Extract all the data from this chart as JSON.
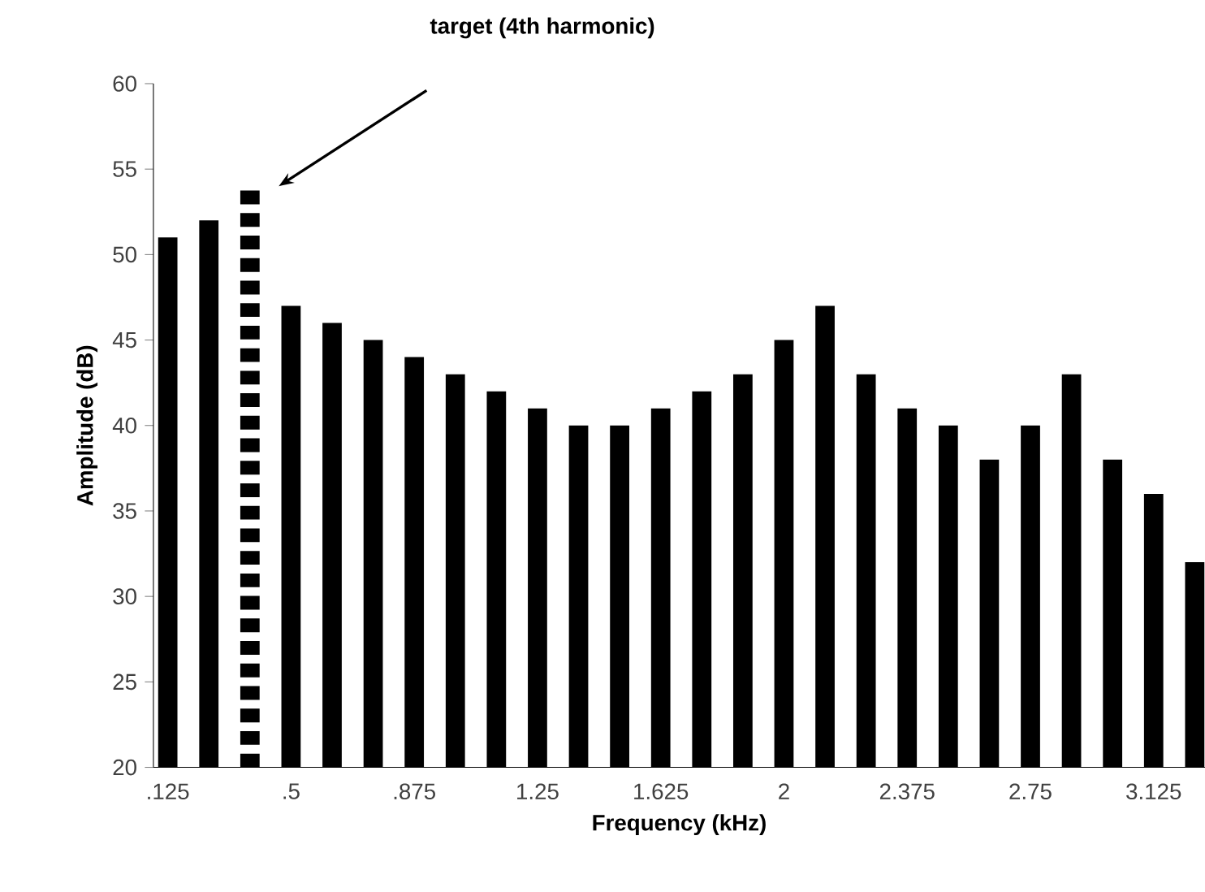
{
  "chart_data": {
    "type": "bar",
    "xlabel": "Frequency (kHz)",
    "ylabel": "Amplitude (dB)",
    "categories": [
      ".125",
      null,
      null,
      ".5",
      null,
      null,
      ".875",
      null,
      null,
      "1.25",
      null,
      null,
      "1.625",
      null,
      null,
      "2",
      null,
      null,
      "2.375",
      null,
      null,
      "2.75",
      null,
      null,
      "3.125",
      null
    ],
    "series": [
      {
        "color": "#000000",
        "values": [
          51,
          52,
          null,
          47,
          46,
          45,
          44,
          43,
          42,
          41,
          40,
          40,
          41,
          42,
          43,
          45,
          47,
          43,
          41,
          40,
          38,
          40,
          43,
          38,
          36,
          32
        ]
      },
      {
        "color": "#000000",
        "line_style": "dashed",
        "values": [
          null,
          null,
          54,
          null,
          null,
          null,
          null,
          null,
          null,
          null,
          null,
          null,
          null,
          null,
          null,
          null,
          null,
          null,
          null,
          null,
          null,
          null,
          null,
          null,
          null,
          null
        ]
      }
    ],
    "ylim": [
      20,
      60
    ],
    "yticks": [
      20,
      25,
      30,
      35,
      40,
      45,
      50,
      55,
      60
    ],
    "annotations": [
      "target  (4th harmonic)"
    ]
  }
}
